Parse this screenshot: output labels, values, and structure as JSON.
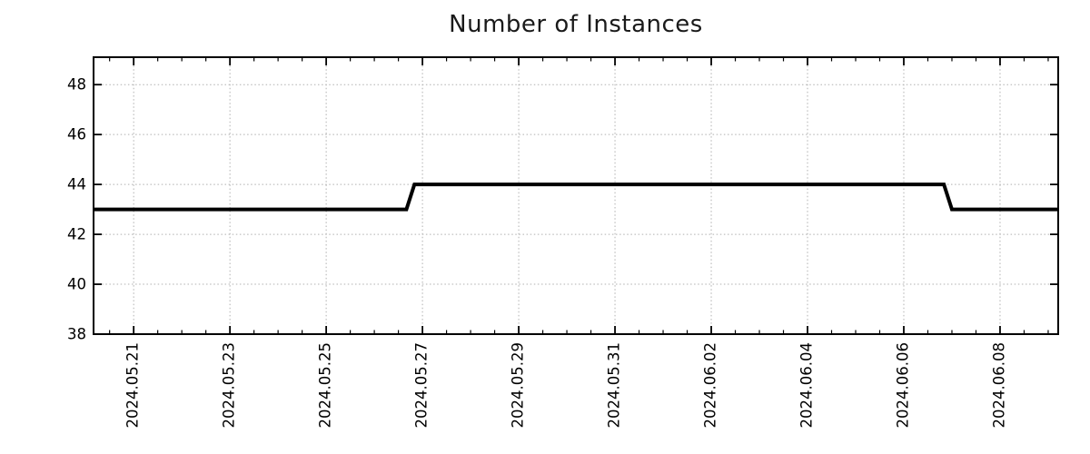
{
  "chart_data": {
    "type": "line",
    "title": "Number of Instances",
    "grid": true,
    "legend": "none",
    "style": {
      "line_color": "#000000",
      "line_width": 4,
      "grid_color": "#b0b0b0",
      "axis_color": "#000000",
      "background": "#ffffff",
      "title_color": "#1a1a1a",
      "tick_label_size": 16.5
    },
    "x_axis": {
      "type": "time",
      "range_start": "2024-05-20T04:00:00",
      "range_end": "2024-06-09T05:00:00",
      "tick_label_rotation_deg": -90,
      "minor_tick_interval_hours": 12,
      "major_ticks": [
        {
          "date": "2024-05-21T00:00:00",
          "label": "2024.05.21"
        },
        {
          "date": "2024-05-23T00:00:00",
          "label": "2024.05.23"
        },
        {
          "date": "2024-05-25T00:00:00",
          "label": "2024.05.25"
        },
        {
          "date": "2024-05-27T00:00:00",
          "label": "2024.05.27"
        },
        {
          "date": "2024-05-29T00:00:00",
          "label": "2024.05.29"
        },
        {
          "date": "2024-05-31T00:00:00",
          "label": "2024.05.31"
        },
        {
          "date": "2024-06-02T00:00:00",
          "label": "2024.06.02"
        },
        {
          "date": "2024-06-04T00:00:00",
          "label": "2024.06.04"
        },
        {
          "date": "2024-06-06T00:00:00",
          "label": "2024.06.06"
        },
        {
          "date": "2024-06-08T00:00:00",
          "label": "2024.06.08"
        }
      ]
    },
    "y_axis": {
      "min": 38,
      "max": 49.1,
      "ticks": [
        38,
        40,
        42,
        44,
        46,
        48
      ]
    },
    "series": [
      {
        "name": "instances",
        "points": [
          {
            "t": "2024-05-20T04:00:00",
            "v": 43
          },
          {
            "t": "2024-05-26T16:00:00",
            "v": 43
          },
          {
            "t": "2024-05-26T20:00:00",
            "v": 44
          },
          {
            "t": "2024-06-06T20:00:00",
            "v": 44
          },
          {
            "t": "2024-06-07T00:00:00",
            "v": 43
          },
          {
            "t": "2024-06-09T05:00:00",
            "v": 43
          }
        ]
      }
    ]
  }
}
